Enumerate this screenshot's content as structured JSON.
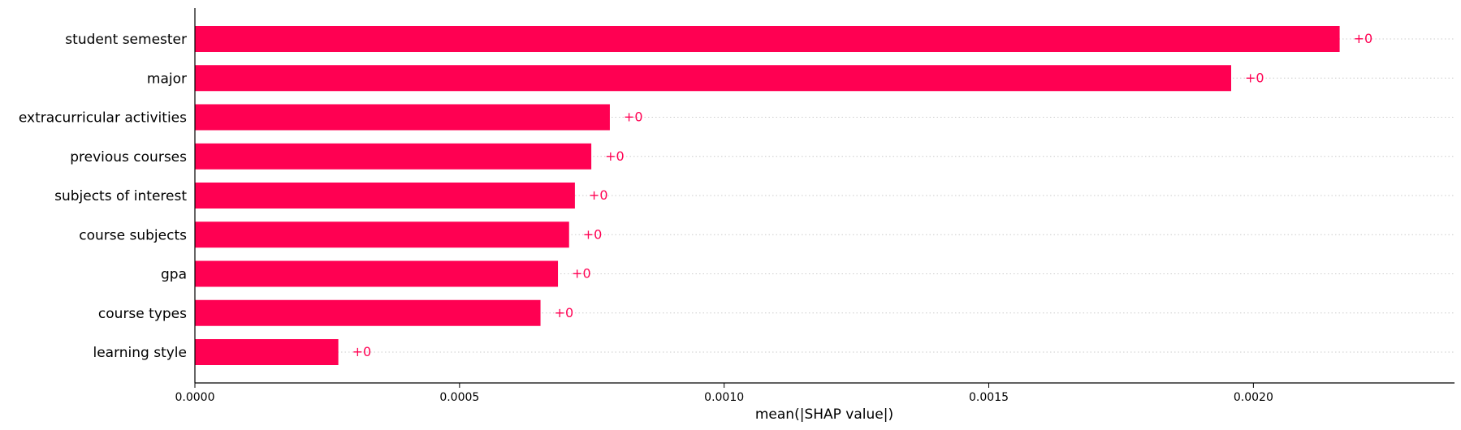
{
  "chart_data": {
    "type": "bar",
    "orientation": "horizontal",
    "title": "",
    "xlabel": "mean(|SHAP value|)",
    "ylabel": "",
    "xlim": [
      0,
      0.00238
    ],
    "x_ticks": [
      "0.0000",
      "0.0005",
      "0.0010",
      "0.0015",
      "0.0020"
    ],
    "x_tick_values": [
      0,
      0.0005,
      0.001,
      0.0015,
      0.002
    ],
    "categories": [
      "student semester",
      "major",
      "extracurricular activities",
      "previous courses",
      "subjects of interest",
      "course subjects",
      "gpa",
      "course types",
      "learning style"
    ],
    "values": [
      0.002163,
      0.001958,
      0.000784,
      0.000749,
      0.000718,
      0.000707,
      0.000686,
      0.000653,
      0.000271
    ],
    "data_labels": [
      "+0",
      "+0",
      "+0",
      "+0",
      "+0",
      "+0",
      "+0",
      "+0",
      "+0"
    ],
    "bar_color": "#ff0052",
    "label_color": "#ff0052",
    "grid": "dotted horizontal guide lines",
    "legend": "none"
  }
}
